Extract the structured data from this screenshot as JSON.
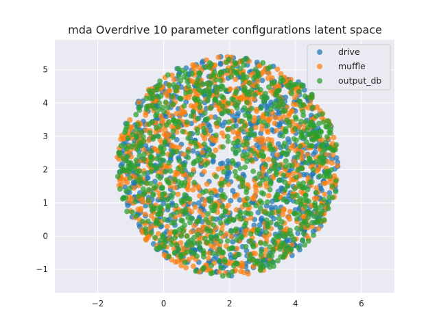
{
  "chart_data": {
    "type": "scatter",
    "title": "mda Overdrive 10 parameter configurations latent space",
    "xlabel": "",
    "ylabel": "",
    "xlim": [
      -3.3,
      7.0
    ],
    "ylim": [
      -1.7,
      5.9
    ],
    "x_ticks": [
      -2,
      0,
      2,
      4,
      6
    ],
    "y_ticks": [
      -1,
      0,
      1,
      2,
      3,
      4,
      5
    ],
    "grid": true,
    "background": "#eaeaf2",
    "legend_position": "top-right",
    "point_cloud": {
      "shape": "disc",
      "center": [
        1.95,
        2.1
      ],
      "radius": 3.3,
      "points_per_series": 900
    },
    "series": [
      {
        "name": "drive",
        "color": "#1f77b4"
      },
      {
        "name": "muffle",
        "color": "#ff7f0e"
      },
      {
        "name": "output_db",
        "color": "#2ca02c"
      }
    ]
  }
}
